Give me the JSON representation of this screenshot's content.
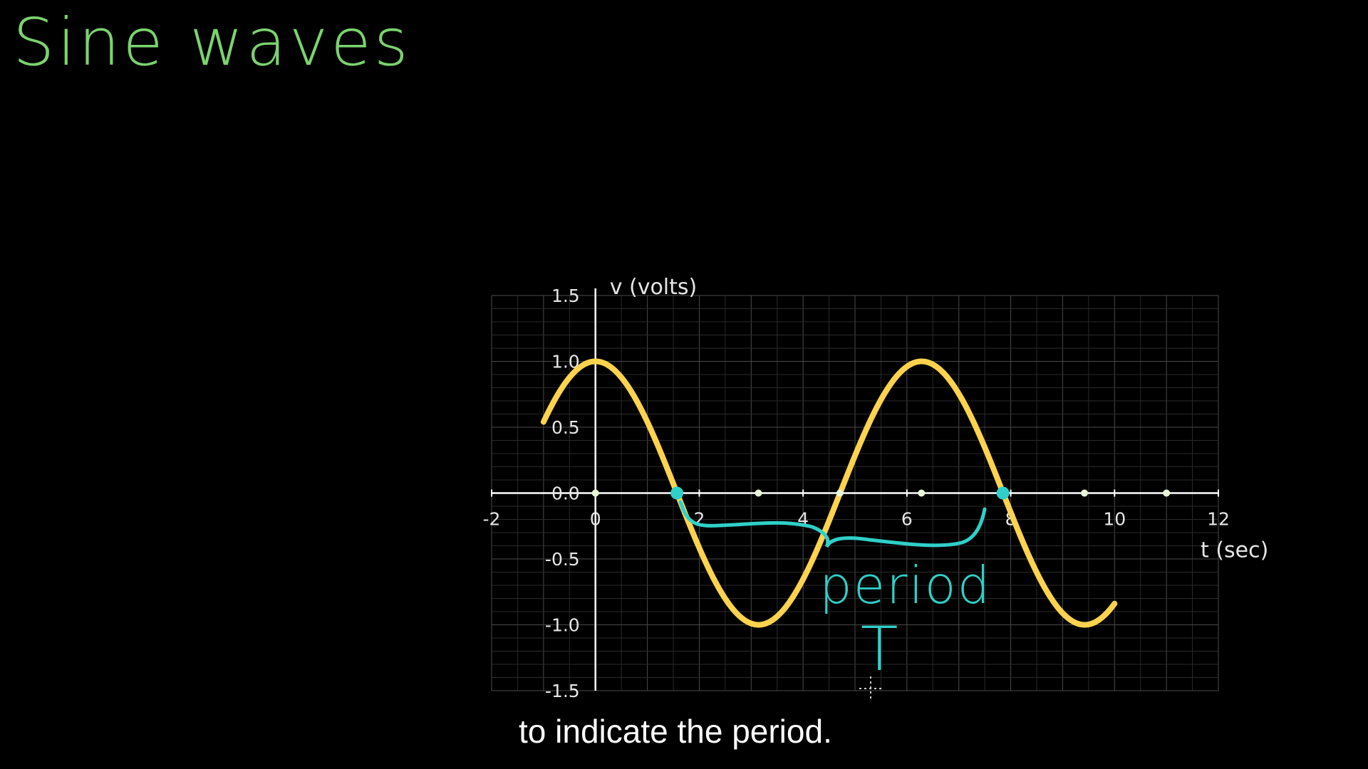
{
  "title": "Sine waves",
  "caption": "to indicate the period.",
  "annotation": {
    "word": "period",
    "symbol": "T"
  },
  "colors": {
    "background": "#000000",
    "title": "#7bd36e",
    "curve": "#ffd34d",
    "annotation": "#2fd0c8",
    "grid": "#3a3a3a",
    "axis": "#ffffff"
  },
  "chart_data": {
    "type": "line",
    "title": "",
    "xlabel": "t (sec)",
    "ylabel": "v (volts)",
    "xlim": [
      -2,
      12
    ],
    "ylim": [
      -1.5,
      1.5
    ],
    "x_ticks": [
      "-2",
      "0",
      "2",
      "4",
      "6",
      "8",
      "10",
      "12"
    ],
    "y_ticks": [
      "1.5",
      "1.0",
      "0.5",
      "0.0",
      "-0.5",
      "-1.0",
      "-1.5"
    ],
    "grid": true,
    "series": [
      {
        "function": "cos",
        "amplitude": 1.0,
        "period": 6.283,
        "x_range": [
          -1,
          10
        ]
      }
    ],
    "marked_points": [
      {
        "x": 0,
        "y": 0
      },
      {
        "x": 3.14,
        "y": 0
      },
      {
        "x": 4.71,
        "y": 0
      },
      {
        "x": 6.28,
        "y": 0
      },
      {
        "x": 9.42,
        "y": 0
      },
      {
        "x": 11.0,
        "y": 0
      }
    ],
    "highlighted_points": [
      {
        "x": 1.57,
        "y": 0
      },
      {
        "x": 7.85,
        "y": 0
      }
    ]
  }
}
